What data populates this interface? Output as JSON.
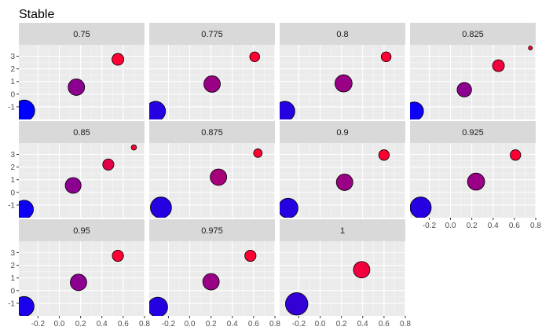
{
  "chart_data": {
    "type": "scatter",
    "title": "Stable",
    "xlabel": "",
    "ylabel": "",
    "x_ticks": [
      -0.2,
      0.0,
      0.2,
      0.4,
      0.6,
      0.8
    ],
    "y_ticks": [
      -1,
      0,
      1,
      2,
      3
    ],
    "xlim": [
      -0.38,
      0.8
    ],
    "ylim": [
      -2.0,
      3.9
    ],
    "legend": "none",
    "grid": true,
    "color_low": "#0000ff",
    "color_high": "#ff0033",
    "panels": [
      {
        "label": "0.75",
        "points": [
          {
            "x": -0.33,
            "y": -1.3,
            "size": 3.2,
            "shade": 0.0
          },
          {
            "x": 0.16,
            "y": 0.55,
            "size": 2.5,
            "shade": 0.55
          },
          {
            "x": 0.55,
            "y": 2.75,
            "size": 1.8,
            "shade": 1.0
          }
        ]
      },
      {
        "label": "0.775",
        "points": [
          {
            "x": -0.32,
            "y": -1.35,
            "size": 3.0,
            "shade": 0.15
          },
          {
            "x": 0.21,
            "y": 0.8,
            "size": 2.5,
            "shade": 0.6
          },
          {
            "x": 0.61,
            "y": 2.95,
            "size": 1.5,
            "shade": 1.0
          }
        ]
      },
      {
        "label": "0.8",
        "points": [
          {
            "x": -0.33,
            "y": -1.35,
            "size": 3.0,
            "shade": 0.15
          },
          {
            "x": 0.22,
            "y": 0.85,
            "size": 2.6,
            "shade": 0.6
          },
          {
            "x": 0.62,
            "y": 2.95,
            "size": 1.5,
            "shade": 1.0
          }
        ]
      },
      {
        "label": "0.825",
        "points": [
          {
            "x": -0.34,
            "y": -1.35,
            "size": 2.8,
            "shade": 0.05
          },
          {
            "x": 0.13,
            "y": 0.35,
            "size": 2.2,
            "shade": 0.55
          },
          {
            "x": 0.45,
            "y": 2.25,
            "size": 1.8,
            "shade": 0.95
          },
          {
            "x": 0.75,
            "y": 3.65,
            "size": 0.6,
            "shade": 1.0
          }
        ]
      },
      {
        "label": "0.85",
        "points": [
          {
            "x": -0.33,
            "y": -1.35,
            "size": 2.8,
            "shade": 0.05
          },
          {
            "x": 0.13,
            "y": 0.55,
            "size": 2.4,
            "shade": 0.55
          },
          {
            "x": 0.46,
            "y": 2.2,
            "size": 1.7,
            "shade": 0.9
          },
          {
            "x": 0.7,
            "y": 3.55,
            "size": 0.8,
            "shade": 1.0
          }
        ]
      },
      {
        "label": "0.875",
        "points": [
          {
            "x": -0.27,
            "y": -1.2,
            "size": 3.2,
            "shade": 0.15
          },
          {
            "x": 0.27,
            "y": 1.2,
            "size": 2.5,
            "shade": 0.65
          },
          {
            "x": 0.64,
            "y": 3.1,
            "size": 1.3,
            "shade": 1.0
          }
        ]
      },
      {
        "label": "0.9",
        "points": [
          {
            "x": -0.3,
            "y": -1.25,
            "size": 3.0,
            "shade": 0.15
          },
          {
            "x": 0.23,
            "y": 0.8,
            "size": 2.5,
            "shade": 0.6
          },
          {
            "x": 0.6,
            "y": 2.95,
            "size": 1.6,
            "shade": 1.0
          }
        ]
      },
      {
        "label": "0.925",
        "points": [
          {
            "x": -0.28,
            "y": -1.2,
            "size": 3.2,
            "shade": 0.15
          },
          {
            "x": 0.24,
            "y": 0.85,
            "size": 2.6,
            "shade": 0.6
          },
          {
            "x": 0.61,
            "y": 2.95,
            "size": 1.6,
            "shade": 1.0
          }
        ]
      },
      {
        "label": "0.95",
        "points": [
          {
            "x": -0.33,
            "y": -1.25,
            "size": 3.0,
            "shade": 0.1
          },
          {
            "x": 0.18,
            "y": 0.65,
            "size": 2.5,
            "shade": 0.55
          },
          {
            "x": 0.55,
            "y": 2.75,
            "size": 1.7,
            "shade": 1.0
          }
        ]
      },
      {
        "label": "0.975",
        "points": [
          {
            "x": -0.3,
            "y": -1.3,
            "size": 3.0,
            "shade": 0.15
          },
          {
            "x": 0.2,
            "y": 0.7,
            "size": 2.5,
            "shade": 0.6
          },
          {
            "x": 0.57,
            "y": 2.75,
            "size": 1.7,
            "shade": 1.0
          }
        ]
      },
      {
        "label": "1",
        "points": [
          {
            "x": -0.22,
            "y": -1.05,
            "size": 3.4,
            "shade": 0.2
          },
          {
            "x": 0.39,
            "y": 1.65,
            "size": 2.5,
            "shade": 0.95
          }
        ]
      }
    ]
  }
}
